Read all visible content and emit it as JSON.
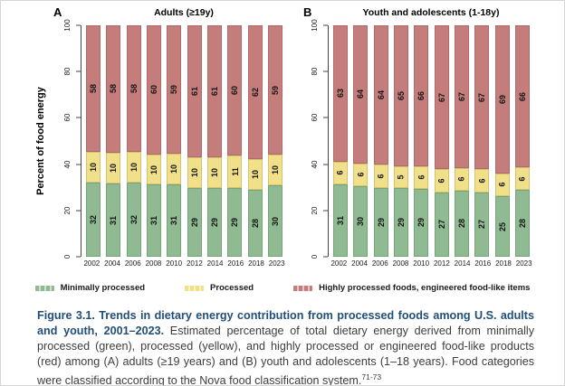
{
  "figure": {
    "panels": [
      {
        "letter": "A"
      },
      {
        "letter": "B"
      }
    ],
    "y_axis": {
      "label": "Percent of food energy"
    },
    "legend": [
      {
        "label": "Minimally processed",
        "color": "#90ba91"
      },
      {
        "label": "Processed",
        "color": "#f0e08a"
      },
      {
        "label": "Highly processed foods, engineered food-like items",
        "color": "#c57d7c"
      }
    ]
  },
  "chart_data": [
    {
      "type": "bar",
      "stacked": true,
      "title": "Adults (≥19y)",
      "categories": [
        "2002",
        "2004",
        "2006",
        "2008",
        "2010",
        "2012",
        "2014",
        "2016",
        "2018",
        "2023"
      ],
      "series": [
        {
          "name": "Minimally processed",
          "color": "#90ba91",
          "border": "#77a378",
          "values": [
            32,
            31,
            32,
            31,
            31,
            29,
            29,
            29,
            28,
            30
          ]
        },
        {
          "name": "Processed",
          "color": "#f0e08a",
          "border": "#d4c26e",
          "values": [
            10,
            10,
            10,
            10,
            10,
            10,
            10,
            11,
            10,
            10
          ]
        },
        {
          "name": "Highly processed foods, engineered food-like items",
          "color": "#c57d7c",
          "border": "#ad6b6b",
          "values": [
            58,
            58,
            58,
            60,
            59,
            61,
            61,
            60,
            62,
            59
          ]
        }
      ],
      "ylabel": "Percent of food energy",
      "ylim": [
        0,
        100
      ],
      "yticks": [
        0,
        20,
        40,
        60,
        80,
        100
      ],
      "legend_position": "bottom",
      "grid": false
    },
    {
      "type": "bar",
      "stacked": true,
      "title": "Youth and adolescents (1-18y)",
      "categories": [
        "2002",
        "2004",
        "2006",
        "2008",
        "2010",
        "2012",
        "2014",
        "2016",
        "2018",
        "2023"
      ],
      "series": [
        {
          "name": "Minimally processed",
          "color": "#90ba91",
          "border": "#77a378",
          "values": [
            31,
            30,
            29,
            29,
            29,
            27,
            28,
            27,
            25,
            28
          ]
        },
        {
          "name": "Processed",
          "color": "#f0e08a",
          "border": "#d4c26e",
          "values": [
            6,
            6,
            6,
            5,
            6,
            6,
            6,
            6,
            6,
            6
          ]
        },
        {
          "name": "Highly processed foods, engineered food-like items",
          "color": "#c57d7c",
          "border": "#ad6b6b",
          "values": [
            63,
            64,
            64,
            65,
            66,
            67,
            67,
            67,
            69,
            66
          ]
        }
      ],
      "ylabel": "",
      "ylim": [
        0,
        100
      ],
      "yticks": [
        0,
        20,
        40,
        60,
        80,
        100
      ],
      "legend_position": "bottom",
      "grid": false
    }
  ],
  "caption": {
    "bold": "Figure 3.1. Trends in dietary energy contribution from processed foods among U.S. adults and youth, 2001–2023.",
    "text": " Estimated percentage of total dietary energy derived from minimally processed (green), processed (yellow), and highly processed or engineered food-like products (red) among (A) adults (≥19 years) and (B) youth and adolescents (1–18 years). Food categories were classified according to the Nova food classification system.",
    "superscript": "71-73"
  }
}
